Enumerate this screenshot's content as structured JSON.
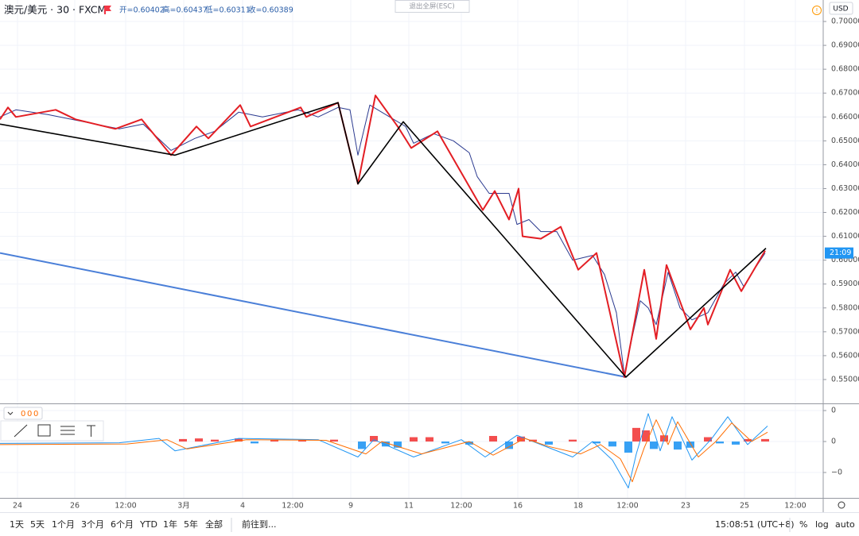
{
  "header": {
    "symbol": "澳元/美元 · 30 · FXCM",
    "open": "开=0.60402",
    "high": "高=0.60437",
    "low": "低=0.60311",
    "close": "收=0.60389"
  },
  "exit_fullscreen": "退出全屏(ESC)",
  "currency": "USD",
  "indicator_values": [
    "0",
    "0",
    "0"
  ],
  "toolbar": {
    "ranges": [
      "1天",
      "5天",
      "1个月",
      "3个月",
      "6个月",
      "YTD",
      "1年",
      "5年",
      "全部"
    ],
    "goto": "前往到...",
    "clock": "15:08:51 (UTC+8)",
    "options": [
      "%",
      "log",
      "auto"
    ]
  },
  "chart_data": [
    {
      "type": "line",
      "countdown_label": "21:09",
      "xlim": [
        0,
        1035
      ],
      "ylim": [
        0.54,
        0.709
      ],
      "grid": true,
      "yticks": [
        {
          "value": 0.55,
          "label": "0.55000"
        },
        {
          "value": 0.56,
          "label": "0.56000"
        },
        {
          "value": 0.57,
          "label": "0.57000"
        },
        {
          "value": 0.58,
          "label": "0.58000"
        },
        {
          "value": 0.59,
          "label": "0.59000"
        },
        {
          "value": 0.6,
          "label": "0.60000"
        },
        {
          "value": 0.61,
          "label": "0.61000"
        },
        {
          "value": 0.62,
          "label": "0.62000"
        },
        {
          "value": 0.63,
          "label": "0.63000"
        },
        {
          "value": 0.64,
          "label": "0.64000"
        },
        {
          "value": 0.65,
          "label": "0.65000"
        },
        {
          "value": 0.66,
          "label": "0.66000"
        },
        {
          "value": 0.67,
          "label": "0.67000"
        },
        {
          "value": 0.68,
          "label": "0.68000"
        },
        {
          "value": 0.69,
          "label": "0.69000"
        },
        {
          "value": 0.7,
          "label": "0.70000"
        }
      ],
      "series": [
        {
          "color": "#4a7fd8",
          "width": 2,
          "x": [
            0,
            787
          ],
          "values": [
            0.603,
            0.551
          ]
        },
        {
          "color": "#2b3a8f",
          "width": 1,
          "x": [
            0,
            20,
            60,
            90,
            120,
            150,
            180,
            215,
            245,
            270,
            300,
            330,
            375,
            400,
            425,
            440,
            450,
            465,
            490,
            510,
            520,
            545,
            570,
            590,
            600,
            615,
            640,
            650,
            665,
            680,
            700,
            720,
            745,
            760,
            775,
            785,
            795,
            805,
            815,
            825,
            840,
            855,
            870,
            890,
            910,
            925,
            935,
            950,
            962
          ],
          "values": [
            0.66,
            0.663,
            0.661,
            0.659,
            0.657,
            0.655,
            0.657,
            0.646,
            0.651,
            0.654,
            0.662,
            0.66,
            0.663,
            0.66,
            0.664,
            0.663,
            0.644,
            0.665,
            0.66,
            0.656,
            0.649,
            0.653,
            0.65,
            0.645,
            0.635,
            0.628,
            0.628,
            0.615,
            0.617,
            0.612,
            0.612,
            0.6,
            0.602,
            0.594,
            0.578,
            0.552,
            0.568,
            0.583,
            0.58,
            0.573,
            0.595,
            0.58,
            0.575,
            0.578,
            0.59,
            0.595,
            0.589,
            0.597,
            0.603
          ]
        },
        {
          "color": "#e31e24",
          "width": 2,
          "x": [
            0,
            10,
            20,
            70,
            95,
            145,
            178,
            215,
            247,
            262,
            302,
            315,
            378,
            385,
            425,
            450,
            472,
            500,
            517,
            550,
            607,
            622,
            640,
            652,
            657,
            680,
            705,
            727,
            750,
            785,
            810,
            825,
            838,
            868,
            885,
            890,
            918,
            932,
            962
          ],
          "values": [
            0.659,
            0.664,
            0.66,
            0.663,
            0.659,
            0.655,
            0.659,
            0.644,
            0.656,
            0.651,
            0.665,
            0.656,
            0.664,
            0.66,
            0.666,
            0.632,
            0.669,
            0.656,
            0.647,
            0.654,
            0.621,
            0.629,
            0.617,
            0.63,
            0.61,
            0.609,
            0.614,
            0.596,
            0.603,
            0.551,
            0.596,
            0.567,
            0.598,
            0.571,
            0.58,
            0.573,
            0.596,
            0.587,
            0.604
          ]
        },
        {
          "color": "#000000",
          "width": 1.6,
          "x": [
            0,
            220,
            425,
            450,
            507,
            787,
            963
          ],
          "values": [
            0.657,
            0.644,
            0.666,
            0.632,
            0.658,
            0.551,
            0.605
          ]
        }
      ]
    },
    {
      "type": "macd",
      "xlim": [
        0,
        1035
      ],
      "ylim": [
        -0.0091,
        0.0059
      ],
      "grid": true,
      "yticks": [
        {
          "value": 0.005,
          "label": "0"
        },
        0,
        {
          "value": -0.005,
          "label": "−0"
        }
      ],
      "xticks": [
        {
          "value": 22,
          "label": "24"
        },
        {
          "value": 94,
          "label": "26"
        },
        {
          "value": 158,
          "label": "12:00"
        },
        {
          "value": 231,
          "label": "3月"
        },
        {
          "value": 305,
          "label": "4"
        },
        {
          "value": 368,
          "label": "12:00"
        },
        {
          "value": 441,
          "label": "9"
        },
        {
          "value": 514,
          "label": "11"
        },
        {
          "value": 580,
          "label": "12:00"
        },
        {
          "value": 651,
          "label": "16"
        },
        {
          "value": 727,
          "label": "18"
        },
        {
          "value": 789,
          "label": "12:00"
        },
        {
          "value": 862,
          "label": "23"
        },
        {
          "value": 936,
          "label": "25"
        },
        {
          "value": 1000,
          "label": "12:00"
        }
      ],
      "histogram": {
        "positive_color": "#f23b3b",
        "negative_color": "#2196f3",
        "x": [
          230,
          250,
          270,
          300,
          320,
          345,
          380,
          420,
          455,
          470,
          485,
          500,
          520,
          540,
          560,
          590,
          620,
          640,
          655,
          670,
          690,
          720,
          750,
          770,
          790,
          800,
          812,
          822,
          835,
          852,
          868,
          890,
          905,
          925,
          940,
          962
        ],
        "values": [
          0.0004,
          0.0005,
          0.0003,
          0.0005,
          -0.0003,
          0.0003,
          0.0002,
          0.0003,
          -0.0012,
          0.0009,
          -0.0008,
          -0.001,
          0.0007,
          0.0007,
          -0.0003,
          -0.0005,
          0.0009,
          -0.0012,
          0.0008,
          0.0003,
          -0.0005,
          0.0003,
          -0.0003,
          -0.0008,
          -0.0018,
          0.0022,
          0.0018,
          -0.0012,
          0.001,
          -0.0013,
          -0.001,
          0.0007,
          -0.0003,
          -0.0005,
          0.0004,
          0.0004
        ]
      },
      "series": [
        {
          "color": "#2196f3",
          "width": 1,
          "x": [
            0,
            150,
            200,
            220,
            300,
            400,
            450,
            470,
            520,
            580,
            610,
            650,
            680,
            720,
            745,
            770,
            790,
            800,
            815,
            830,
            845,
            870,
            895,
            915,
            940,
            965
          ],
          "values": [
            -0.0003,
            -0.0002,
            0.0005,
            -0.0015,
            0.0005,
            0.0003,
            -0.0025,
            0.0003,
            -0.0025,
            0.0003,
            -0.0025,
            0.001,
            -0.0005,
            -0.0025,
            0.0,
            -0.003,
            -0.0075,
            -0.002,
            0.0045,
            -0.0015,
            0.004,
            -0.003,
            0.0005,
            0.004,
            -0.0005,
            0.0025
          ]
        },
        {
          "color": "#ff6d00",
          "width": 1,
          "x": [
            0,
            160,
            210,
            235,
            310,
            410,
            460,
            480,
            530,
            590,
            620,
            660,
            690,
            730,
            755,
            780,
            795,
            810,
            825,
            840,
            852,
            878,
            900,
            920,
            945,
            965
          ],
          "values": [
            -0.0005,
            -0.0004,
            0.0003,
            -0.0012,
            0.0003,
            0.0002,
            -0.002,
            0.0,
            -0.002,
            0.0,
            -0.0022,
            0.0005,
            -0.0008,
            -0.002,
            -0.0005,
            -0.0028,
            -0.0065,
            -0.001,
            0.0035,
            -0.0005,
            0.0032,
            -0.0025,
            0.0,
            0.003,
            0.0,
            0.0015
          ]
        }
      ]
    }
  ]
}
